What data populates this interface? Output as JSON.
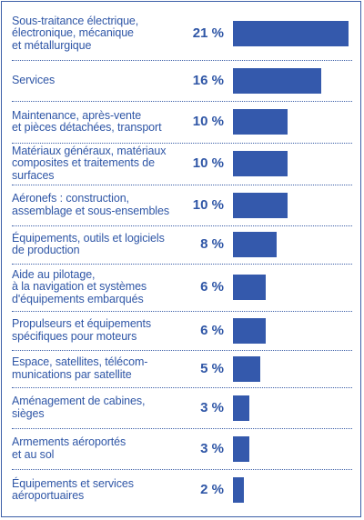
{
  "chart_data": {
    "type": "bar",
    "orientation": "horizontal",
    "title": "",
    "xlabel": "",
    "ylabel": "",
    "grid": false,
    "xlim": [
      0,
      21
    ],
    "categories": [
      "Sous-traitance électrique,\nélectronique, mécanique\net métallurgique",
      "Services",
      "Maintenance, après-vente\net pièces détachées, transport",
      "Matériaux généraux, matériaux\ncomposites et traitements de surfaces",
      "Aéronefs : construction,\nassemblage et sous-ensembles",
      "Équipements, outils et logiciels\nde production",
      "Aide au pilotage,\nà la navigation et systèmes\nd'équipements embarqués",
      "Propulseurs et équipements\nspécifiques pour moteurs",
      "Espace, satellites, télécom-\nmunications par satellite",
      "Aménagement de cabines,\nsièges",
      "Armements aéroportés\net au sol",
      "Équipements et services\naéroportuaires"
    ],
    "values": [
      21,
      16,
      10,
      10,
      10,
      8,
      6,
      6,
      5,
      3,
      3,
      2
    ],
    "value_labels": [
      "21 %",
      "16 %",
      "10 %",
      "10 %",
      "10 %",
      "8 %",
      "6 %",
      "6 %",
      "5 %",
      "3 %",
      "3 %",
      "2 %"
    ],
    "colors": {
      "bar": "#3459ac",
      "text": "#2f56a6",
      "border": "#3c5fa8"
    }
  }
}
